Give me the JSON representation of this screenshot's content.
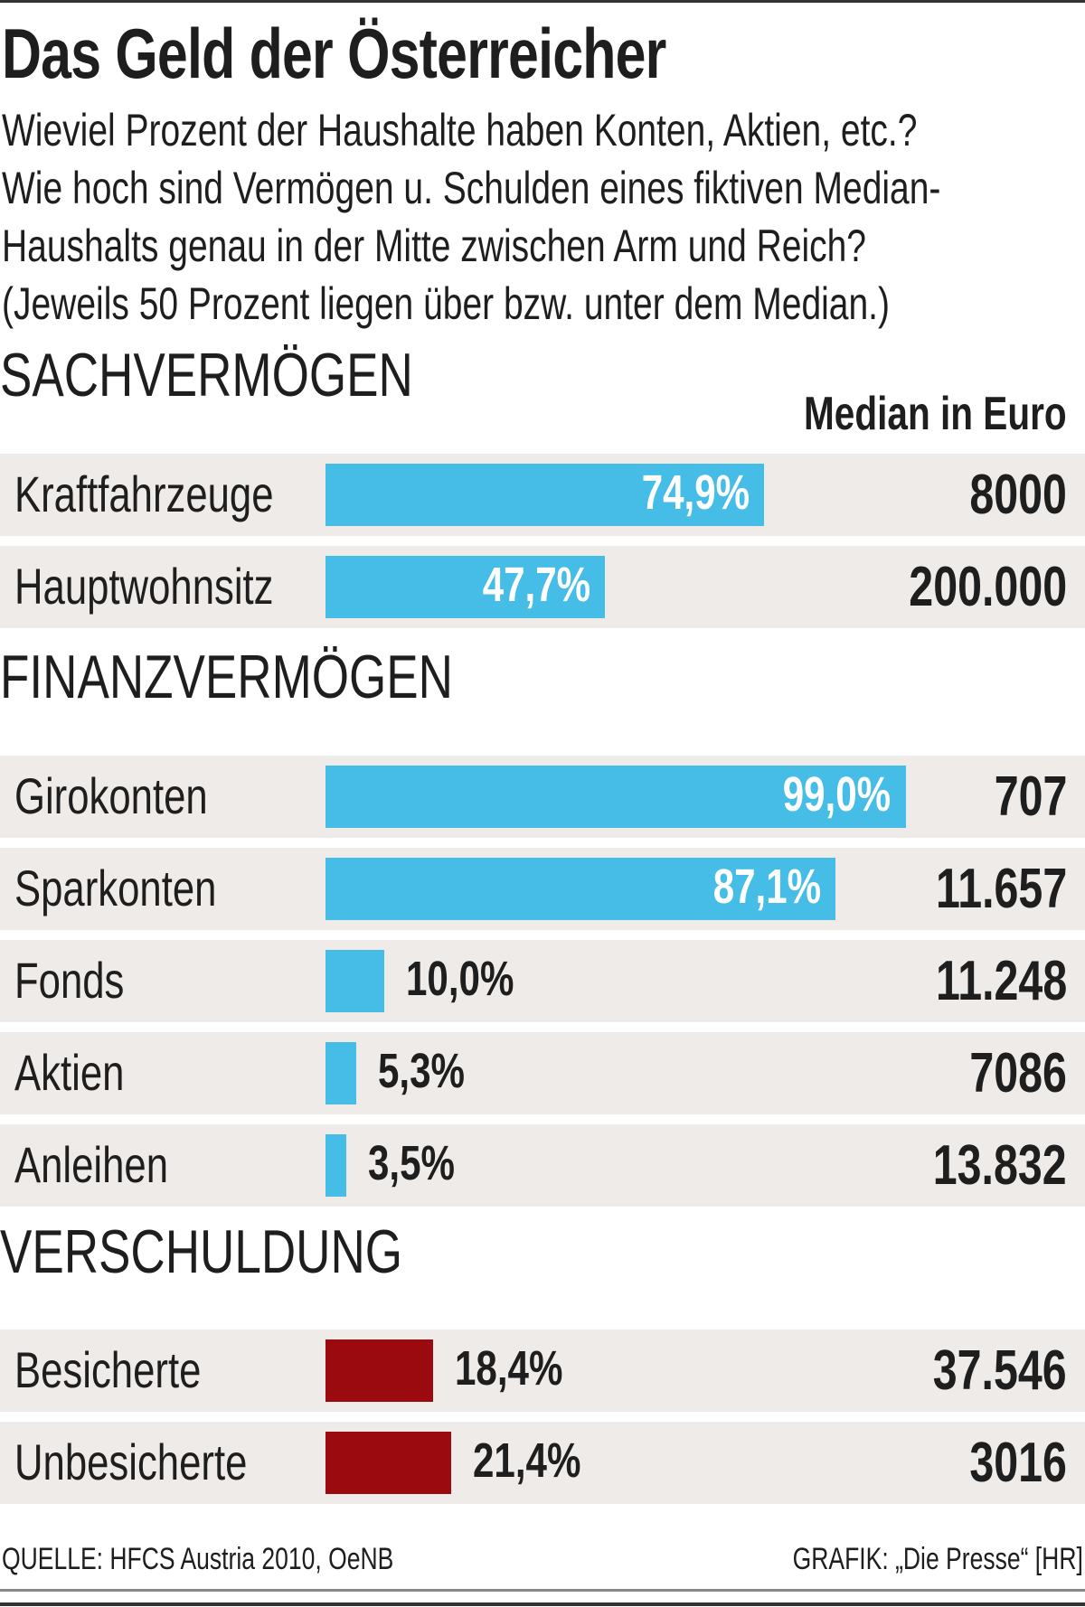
{
  "title": "Das Geld der Österreicher",
  "subtitle_lines": [
    "Wieviel Prozent der Haushalte haben Konten, Aktien, etc.?",
    "Wie hoch sind Vermögen u. Schulden eines fiktiven Median-",
    "Haushalts genau in der Mitte zwischen Arm und Reich?",
    "(Jeweils 50 Prozent liegen über bzw. unter dem Median.)"
  ],
  "median_header": "Median in Euro",
  "footer": {
    "source": "QUELLE: HFCS Austria 2010, OeNB",
    "credit": "GRAFIK: „Die Presse“ [HR]"
  },
  "colors": {
    "asset_bar": "#45bde6",
    "debt_bar": "#9b0a0e",
    "row_bg": "#efebe8"
  },
  "chart_data": {
    "type": "bar",
    "orientation": "horizontal",
    "xlim": [
      0,
      100
    ],
    "unit": "%",
    "groups": [
      {
        "name": "SACHVERMÖGEN",
        "color": "#45bde6",
        "items": [
          {
            "label": "Kraftfahrzeuge",
            "percent": 74.9,
            "percent_label": "74,9%",
            "median": "8000"
          },
          {
            "label": "Hauptwohnsitz",
            "percent": 47.7,
            "percent_label": "47,7%",
            "median": "200.000"
          }
        ]
      },
      {
        "name": "FINANZVERMÖGEN",
        "color": "#45bde6",
        "items": [
          {
            "label": "Girokonten",
            "percent": 99.0,
            "percent_label": "99,0%",
            "median": "707"
          },
          {
            "label": "Sparkonten",
            "percent": 87.1,
            "percent_label": "87,1%",
            "median": "11.657"
          },
          {
            "label": "Fonds",
            "percent": 10.0,
            "percent_label": "10,0%",
            "median": "11.248"
          },
          {
            "label": "Aktien",
            "percent": 5.3,
            "percent_label": "5,3%",
            "median": "7086"
          },
          {
            "label": "Anleihen",
            "percent": 3.5,
            "percent_label": "3,5%",
            "median": "13.832"
          }
        ]
      },
      {
        "name": "VERSCHULDUNG",
        "color": "#9b0a0e",
        "items": [
          {
            "label": "Besicherte",
            "percent": 18.4,
            "percent_label": "18,4%",
            "median": "37.546"
          },
          {
            "label": "Unbesicherte",
            "percent": 21.4,
            "percent_label": "21,4%",
            "median": "3016"
          }
        ]
      }
    ]
  }
}
